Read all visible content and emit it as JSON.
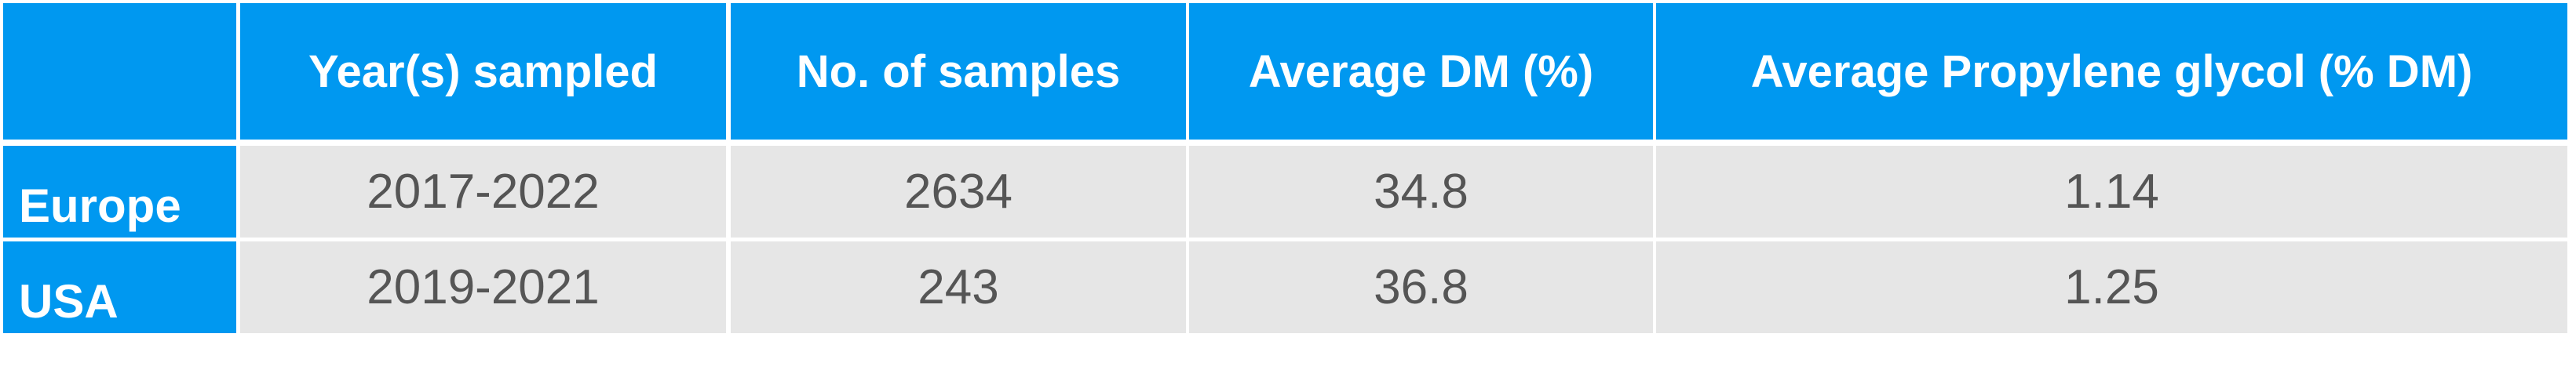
{
  "table": {
    "header": [
      "Year(s) sampled",
      "No. of samples",
      "Average DM (%)",
      "Average Propylene glycol (% DM)"
    ],
    "rows": [
      {
        "label": "Europe",
        "cells": [
          "2017-2022",
          2634,
          34.8,
          1.14
        ]
      },
      {
        "label": "USA",
        "cells": [
          "2019-2021",
          243,
          36.8,
          1.25
        ]
      }
    ]
  }
}
